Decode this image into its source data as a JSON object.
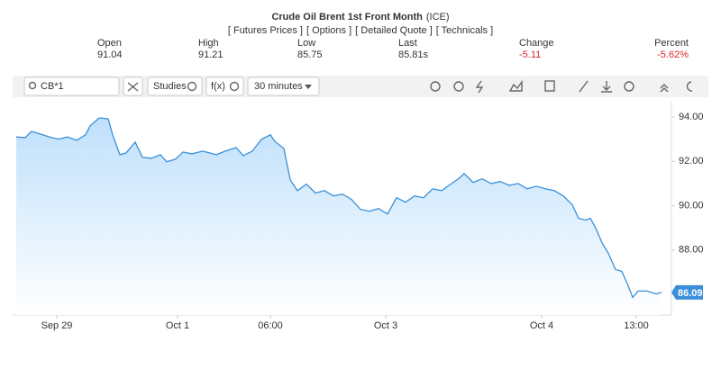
{
  "header": {
    "title": "Crude Oil Brent 1st Front Month",
    "exchange": "(ICE)",
    "links": [
      "[ Futures Prices ]",
      "[ Options ]",
      "[ Detailed Quote ]",
      "[ Technicals ]"
    ]
  },
  "quote": [
    {
      "label": "Open",
      "value": "91.04"
    },
    {
      "label": "High",
      "value": "91.21"
    },
    {
      "label": "Low",
      "value": "85.75"
    },
    {
      "label": "Last",
      "value": "85.81s"
    },
    {
      "label": "Change",
      "value": "-5.11"
    },
    {
      "label": "Percent",
      "value": "-5.62%"
    }
  ],
  "toolbar": {
    "symbol": "CB*1",
    "studies": "Studies",
    "fx": "f(x)",
    "interval": "30 minutes"
  },
  "chart_data": {
    "type": "line",
    "color": "#3a8fd8",
    "x": [
      0,
      10,
      17,
      27,
      37,
      47,
      57,
      67,
      77,
      82,
      92,
      102,
      107,
      115,
      122,
      132,
      140,
      150,
      160,
      167,
      177,
      185,
      195,
      207,
      222,
      232,
      244,
      252,
      262,
      272,
      282,
      287,
      297,
      304,
      312,
      322,
      332,
      342,
      352,
      362,
      372,
      382,
      392,
      402,
      412,
      422,
      432,
      442,
      452,
      462,
      472,
      482,
      492,
      497,
      507,
      517,
      527,
      537,
      547,
      557,
      567,
      577,
      587,
      597,
      607,
      617,
      624,
      632,
      637,
      642,
      650,
      657,
      665,
      672,
      679,
      684,
      690,
      700,
      710,
      716
    ],
    "values": [
      93.1,
      93.07,
      93.35,
      93.23,
      93.1,
      93.0,
      93.1,
      92.95,
      93.2,
      93.6,
      93.96,
      93.92,
      93.2,
      92.3,
      92.38,
      92.87,
      92.18,
      92.14,
      92.3,
      91.98,
      92.1,
      92.42,
      92.34,
      92.46,
      92.3,
      92.46,
      92.62,
      92.26,
      92.46,
      92.99,
      93.2,
      92.9,
      92.58,
      91.17,
      90.68,
      90.97,
      90.57,
      90.68,
      90.44,
      90.52,
      90.28,
      89.83,
      89.75,
      89.87,
      89.63,
      90.36,
      90.16,
      90.44,
      90.36,
      90.76,
      90.68,
      90.97,
      91.25,
      91.45,
      91.05,
      91.21,
      91.0,
      91.09,
      90.92,
      91.0,
      90.76,
      90.88,
      90.76,
      90.68,
      90.44,
      90.04,
      89.43,
      89.35,
      89.43,
      89.07,
      88.33,
      87.85,
      87.12,
      87.04,
      86.39,
      85.86,
      86.15,
      86.15,
      86.02,
      86.09
    ],
    "xlim": [
      0,
      722
    ],
    "ylim": [
      85.07,
      94.73
    ],
    "xticks": [
      {
        "value": 45,
        "label": "Sep 29"
      },
      {
        "value": 179,
        "label": "Oct 1"
      },
      {
        "value": 282,
        "label": "06:00"
      },
      {
        "value": 410,
        "label": "Oct 3"
      },
      {
        "value": 583,
        "label": "Oct 4"
      },
      {
        "value": 688,
        "label": "13:00"
      }
    ],
    "yticks": [
      {
        "value": 86,
        "label": "86.00"
      },
      {
        "value": 88,
        "label": "88.00"
      },
      {
        "value": 90,
        "label": "90.00"
      },
      {
        "value": 92,
        "label": "92.00"
      },
      {
        "value": 94,
        "label": "94.00"
      }
    ],
    "last_value": 86.09
  }
}
